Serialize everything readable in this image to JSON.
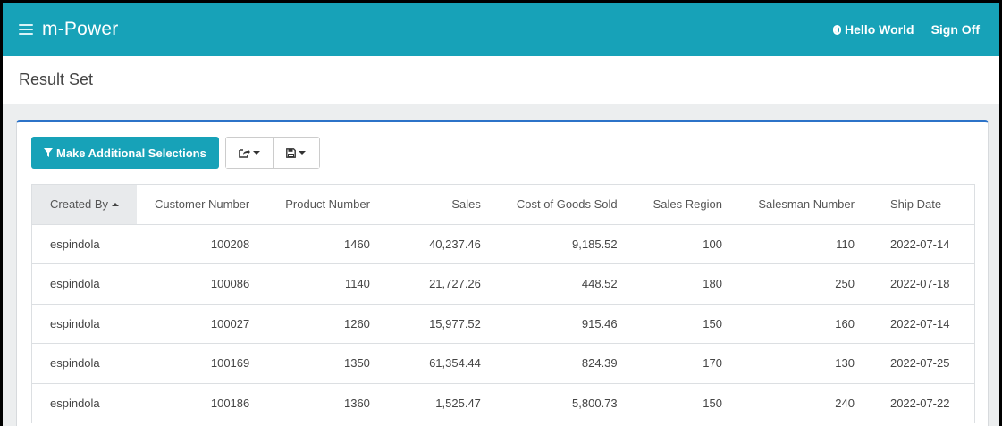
{
  "navbar": {
    "brand": "m-Power",
    "user_name": "Hello World",
    "sign_off": "Sign Off"
  },
  "page": {
    "title": "Result Set"
  },
  "toolbar": {
    "selections_label": "Make Additional Selections",
    "share_icon": "share-icon",
    "save_icon": "save-icon"
  },
  "table": {
    "columns": [
      "Created By",
      "Customer Number",
      "Product Number",
      "Sales",
      "Cost of Goods Sold",
      "Sales Region",
      "Salesman Number",
      "Ship Date"
    ],
    "sorted_column": "Created By",
    "sort_direction": "ascending",
    "rows": [
      [
        "espindola",
        "100208",
        "1460",
        "40,237.46",
        "9,185.52",
        "100",
        "110",
        "2022-07-14"
      ],
      [
        "espindola",
        "100086",
        "1140",
        "21,727.26",
        "448.52",
        "180",
        "250",
        "2022-07-18"
      ],
      [
        "espindola",
        "100027",
        "1260",
        "15,977.52",
        "915.46",
        "150",
        "160",
        "2022-07-14"
      ],
      [
        "espindola",
        "100169",
        "1350",
        "61,354.44",
        "824.39",
        "170",
        "130",
        "2022-07-25"
      ],
      [
        "espindola",
        "100186",
        "1360",
        "1,525.47",
        "5,800.73",
        "150",
        "240",
        "2022-07-22"
      ]
    ]
  },
  "colors": {
    "accent": "#17a2b8",
    "card_top_border": "#2c73c8"
  }
}
